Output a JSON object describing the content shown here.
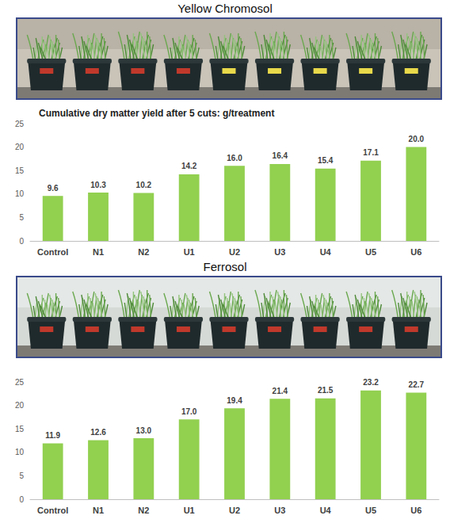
{
  "chart_data": [
    {
      "type": "bar",
      "title": "Yellow Chromosol",
      "subtitle": "Cumulative dry matter yield after 5 cuts: g/treatment",
      "categories": [
        "Control",
        "N1",
        "N2",
        "U1",
        "U2",
        "U3",
        "U4",
        "U5",
        "U6"
      ],
      "values": [
        9.6,
        10.3,
        10.2,
        14.2,
        16.0,
        16.4,
        15.4,
        17.1,
        20.0
      ],
      "value_labels": [
        "9.6",
        "10.3",
        "10.2",
        "14.2",
        "16.0",
        "16.4",
        "15.4",
        "17.1",
        "20.0"
      ],
      "color": "#92d050",
      "ylim": [
        0,
        25
      ],
      "yticks": [
        0,
        5,
        10,
        15,
        20,
        25
      ],
      "grid": false,
      "data_labels": true
    },
    {
      "type": "bar",
      "title": "Ferrosol",
      "categories": [
        "Control",
        "N1",
        "N2",
        "U1",
        "U2",
        "U3",
        "U4",
        "U5",
        "U6"
      ],
      "values": [
        11.9,
        12.6,
        13.0,
        17.0,
        19.4,
        21.4,
        21.5,
        23.2,
        22.7
      ],
      "value_labels": [
        "11.9",
        "12.6",
        "13.0",
        "17.0",
        "19.4",
        "21.4",
        "21.5",
        "23.2",
        "22.7"
      ],
      "color": "#92d050",
      "ylim": [
        0,
        25
      ],
      "yticks": [
        0,
        5,
        10,
        15,
        20,
        25
      ],
      "grid": false,
      "data_labels": true
    }
  ]
}
